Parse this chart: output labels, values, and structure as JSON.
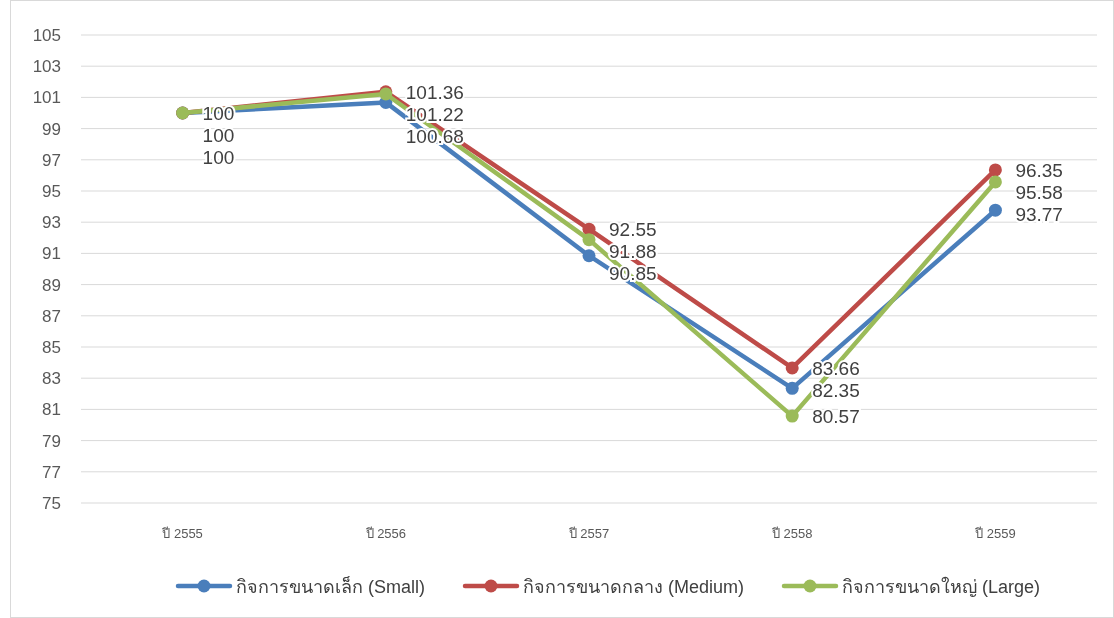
{
  "chart_data": {
    "type": "line",
    "categories": [
      "ปี 2555",
      "ปี 2556",
      "ปี 2557",
      "ปี 2558",
      "ปี 2559"
    ],
    "series": [
      {
        "name": "กิจการขนาดเล็ก (Small)",
        "color": "#4a7ebb",
        "values": [
          100,
          100.68,
          90.85,
          82.35,
          93.77
        ]
      },
      {
        "name": "กิจการขนาดกลาง (Medium)",
        "color": "#be4b48",
        "values": [
          100,
          101.36,
          92.55,
          83.66,
          96.35
        ]
      },
      {
        "name": "กิจการขนาดใหญ่ (Large)",
        "color": "#9bbb59",
        "values": [
          100,
          101.22,
          91.88,
          80.57,
          95.58
        ]
      }
    ],
    "ylim": [
      75,
      105
    ],
    "yticks": [
      75,
      77,
      79,
      81,
      83,
      85,
      87,
      89,
      91,
      93,
      95,
      97,
      99,
      101,
      103,
      105
    ],
    "grid": "y",
    "legend": "bottom",
    "marker": "circle",
    "line_style": "solid",
    "data_labels": true
  }
}
